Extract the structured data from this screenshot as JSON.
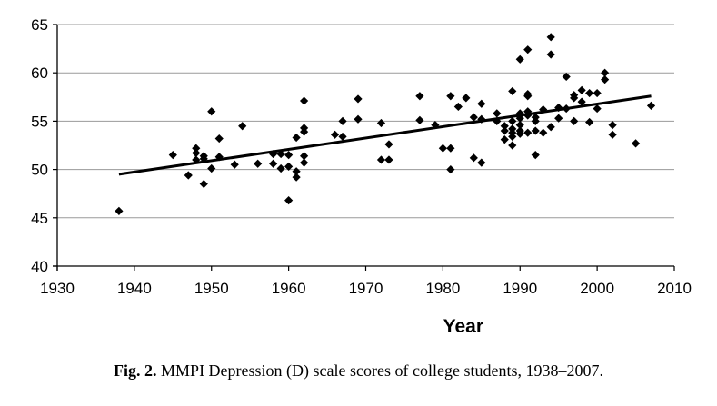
{
  "chart_data": {
    "type": "scatter",
    "title": "",
    "xlabel": "Year",
    "ylabel": "",
    "xlim": [
      1930,
      2010
    ],
    "ylim": [
      40,
      65
    ],
    "x_ticks": [
      1930,
      1940,
      1950,
      1960,
      1970,
      1980,
      1990,
      2000,
      2010
    ],
    "y_ticks": [
      40,
      45,
      50,
      55,
      60,
      65
    ],
    "grid": "horizontal",
    "marker": "diamond",
    "series": [
      {
        "name": "MMPI Depression (D) scale scores",
        "points": [
          [
            1938,
            45.7
          ],
          [
            1945,
            51.5
          ],
          [
            1947,
            49.4
          ],
          [
            1948,
            52.2
          ],
          [
            1948,
            51.7
          ],
          [
            1948,
            51.0
          ],
          [
            1949,
            51.4
          ],
          [
            1949,
            51.1
          ],
          [
            1949,
            48.5
          ],
          [
            1950,
            56.0
          ],
          [
            1950,
            50.1
          ],
          [
            1951,
            53.2
          ],
          [
            1951,
            51.3
          ],
          [
            1953,
            50.5
          ],
          [
            1954,
            54.5
          ],
          [
            1956,
            50.6
          ],
          [
            1958,
            51.6
          ],
          [
            1958,
            50.6
          ],
          [
            1959,
            51.6
          ],
          [
            1959,
            50.1
          ],
          [
            1960,
            51.5
          ],
          [
            1960,
            50.3
          ],
          [
            1960,
            46.8
          ],
          [
            1961,
            53.3
          ],
          [
            1961,
            49.8
          ],
          [
            1961,
            49.2
          ],
          [
            1962,
            57.1
          ],
          [
            1962,
            54.3
          ],
          [
            1962,
            53.9
          ],
          [
            1962,
            51.4
          ],
          [
            1962,
            50.7
          ],
          [
            1966,
            53.6
          ],
          [
            1967,
            55.0
          ],
          [
            1967,
            53.4
          ],
          [
            1969,
            57.3
          ],
          [
            1969,
            55.2
          ],
          [
            1972,
            54.8
          ],
          [
            1972,
            51.0
          ],
          [
            1973,
            52.6
          ],
          [
            1973,
            51.0
          ],
          [
            1977,
            57.6
          ],
          [
            1977,
            55.1
          ],
          [
            1979,
            54.6
          ],
          [
            1980,
            52.2
          ],
          [
            1981,
            57.6
          ],
          [
            1981,
            52.2
          ],
          [
            1981,
            50.0
          ],
          [
            1982,
            56.5
          ],
          [
            1983,
            57.4
          ],
          [
            1984,
            55.4
          ],
          [
            1984,
            51.2
          ],
          [
            1985,
            56.8
          ],
          [
            1985,
            55.2
          ],
          [
            1985,
            50.7
          ],
          [
            1987,
            55.8
          ],
          [
            1987,
            55.0
          ],
          [
            1988,
            54.5
          ],
          [
            1988,
            54.0
          ],
          [
            1988,
            53.1
          ],
          [
            1989,
            58.1
          ],
          [
            1989,
            55.0
          ],
          [
            1989,
            54.2
          ],
          [
            1989,
            53.8
          ],
          [
            1989,
            53.4
          ],
          [
            1989,
            52.5
          ],
          [
            1990,
            61.4
          ],
          [
            1990,
            55.8
          ],
          [
            1990,
            55.3
          ],
          [
            1990,
            54.6
          ],
          [
            1990,
            54.0
          ],
          [
            1990,
            53.7
          ],
          [
            1991,
            62.4
          ],
          [
            1991,
            57.8
          ],
          [
            1991,
            57.6
          ],
          [
            1991,
            56.0
          ],
          [
            1991,
            55.6
          ],
          [
            1991,
            53.8
          ],
          [
            1992,
            55.4
          ],
          [
            1992,
            55.0
          ],
          [
            1992,
            54.0
          ],
          [
            1992,
            51.5
          ],
          [
            1993,
            53.8
          ],
          [
            1993,
            56.2
          ],
          [
            1994,
            63.7
          ],
          [
            1994,
            61.9
          ],
          [
            1994,
            54.4
          ],
          [
            1995,
            56.4
          ],
          [
            1995,
            55.3
          ],
          [
            1996,
            59.6
          ],
          [
            1996,
            56.3
          ],
          [
            1997,
            57.7
          ],
          [
            1997,
            57.4
          ],
          [
            1997,
            55.0
          ],
          [
            1998,
            58.2
          ],
          [
            1998,
            57.0
          ],
          [
            1999,
            57.9
          ],
          [
            1999,
            54.9
          ],
          [
            2000,
            57.9
          ],
          [
            2000,
            56.3
          ],
          [
            2001,
            60.0
          ],
          [
            2001,
            59.3
          ],
          [
            2002,
            54.6
          ],
          [
            2002,
            53.6
          ],
          [
            2005,
            52.7
          ],
          [
            2007,
            56.6
          ]
        ]
      }
    ],
    "trendline": {
      "type": "linear",
      "x": [
        1938,
        2007
      ],
      "y": [
        49.5,
        57.6
      ]
    }
  },
  "caption": {
    "label": "Fig. 2.",
    "text": "MMPI Depression (D) scale scores of college students, 1938–2007."
  }
}
